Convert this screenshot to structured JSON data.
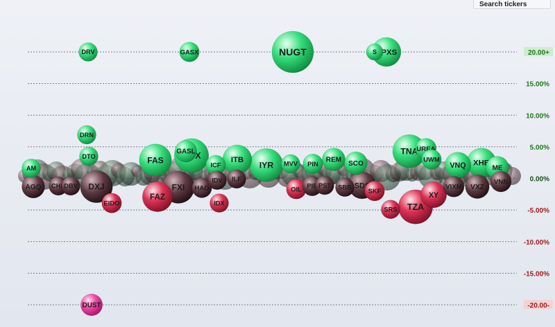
{
  "search": {
    "label": "Search tickers"
  },
  "colors": {
    "up": "#1fd96b",
    "down": "#d8264a",
    "flat": "#444444",
    "pos_tick": "#1d7a1d",
    "neg_tick": "#a61b1b",
    "pos_tick_bg": "#cfeccf",
    "neg_tick_bg": "#f3d2d2"
  },
  "chart_data": {
    "type": "scatter",
    "ylim": [
      -20,
      20
    ],
    "y_ticks": [
      {
        "value": 20,
        "label": "20.00+"
      },
      {
        "value": 15,
        "label": "15.00%"
      },
      {
        "value": 10,
        "label": "10.00%"
      },
      {
        "value": 5,
        "label": "5.00%"
      },
      {
        "value": 0,
        "label": "0.00%"
      },
      {
        "value": -5,
        "label": "-5.00%"
      },
      {
        "value": -10,
        "label": "-10.00%"
      },
      {
        "value": -15,
        "label": "-15.00%"
      },
      {
        "value": -20,
        "label": "-20.00-"
      }
    ],
    "grid": true,
    "points": [
      {
        "label": "NUGT",
        "change": 24.5,
        "size": 3.2
      },
      {
        "label": "SPXS",
        "change": 21.5,
        "size": 2.0
      },
      {
        "label": "S",
        "change": 21.3,
        "size": 0.8
      },
      {
        "label": "DRV",
        "change": 21.2,
        "size": 1.0
      },
      {
        "label": "GASX",
        "change": 21.2,
        "size": 1.1
      },
      {
        "label": "DRN",
        "change": 6.9,
        "size": 1.0
      },
      {
        "label": "DTO",
        "change": 3.5,
        "size": 1.0
      },
      {
        "label": "FAS",
        "change": 2.9,
        "size": 2.3
      },
      {
        "label": "GASL",
        "change": 4.3,
        "size": 1.3
      },
      {
        "label": "GDX",
        "change": 3.6,
        "size": 2.5
      },
      {
        "label": "ITB",
        "change": 3.0,
        "size": 2.0
      },
      {
        "label": "IYR",
        "change": 2.1,
        "size": 2.4
      },
      {
        "label": "MVV",
        "change": 2.3,
        "size": 1.0
      },
      {
        "label": "PIN",
        "change": 2.3,
        "size": 1.1
      },
      {
        "label": "REM",
        "change": 3.0,
        "size": 1.4
      },
      {
        "label": "SCO",
        "change": 2.4,
        "size": 1.4
      },
      {
        "label": "TNA",
        "change": 4.3,
        "size": 2.4
      },
      {
        "label": "UREA",
        "change": 4.7,
        "size": 1.2
      },
      {
        "label": "UWM",
        "change": 3.0,
        "size": 1.1
      },
      {
        "label": "VNQ",
        "change": 2.1,
        "size": 1.7
      },
      {
        "label": "XHB",
        "change": 2.5,
        "size": 2.0
      },
      {
        "label": "ME",
        "change": 1.7,
        "size": 1.4
      },
      {
        "label": "AM",
        "change": 1.6,
        "size": 1.0
      },
      {
        "label": "ICF",
        "change": 2.1,
        "size": 1.1
      },
      {
        "label": "AGQ",
        "change": -1.3,
        "size": 1.4
      },
      {
        "label": "CHK",
        "change": -1.2,
        "size": 1.0
      },
      {
        "label": "DBV",
        "change": -1.2,
        "size": 1.0
      },
      {
        "label": "DXJ",
        "change": -1.3,
        "size": 2.3
      },
      {
        "label": "EIDO",
        "change": -3.9,
        "size": 1.1
      },
      {
        "label": "FXI",
        "change": -1.4,
        "size": 2.3
      },
      {
        "label": "FAZ",
        "change": -2.9,
        "size": 2.1
      },
      {
        "label": "IDX",
        "change": -3.9,
        "size": 1.0
      },
      {
        "label": "HAO",
        "change": -1.5,
        "size": 1.1
      },
      {
        "label": "IDV",
        "change": -0.3,
        "size": 1.0
      },
      {
        "label": "ILF",
        "change": -0.1,
        "size": 1.0
      },
      {
        "label": "OIL",
        "change": -1.7,
        "size": 1.1
      },
      {
        "label": "PIE",
        "change": -1.2,
        "size": 1.1
      },
      {
        "label": "PST",
        "change": -1.1,
        "size": 1.0
      },
      {
        "label": "SBB",
        "change": -1.4,
        "size": 1.0
      },
      {
        "label": "SDS",
        "change": -1.1,
        "size": 1.8
      },
      {
        "label": "SKF",
        "change": -2.0,
        "size": 1.1
      },
      {
        "label": "SRS",
        "change": -4.9,
        "size": 1.0
      },
      {
        "label": "TZA",
        "change": -4.5,
        "size": 2.5
      },
      {
        "label": "XY",
        "change": -2.6,
        "size": 1.7
      },
      {
        "label": "VIXM",
        "change": -1.3,
        "size": 1.2
      },
      {
        "label": "VXZ",
        "change": -1.3,
        "size": 1.5
      },
      {
        "label": "VNN",
        "change": -0.5,
        "size": 1.2
      },
      {
        "label": "DUST",
        "change": -20.3,
        "size": 1.3
      }
    ]
  }
}
